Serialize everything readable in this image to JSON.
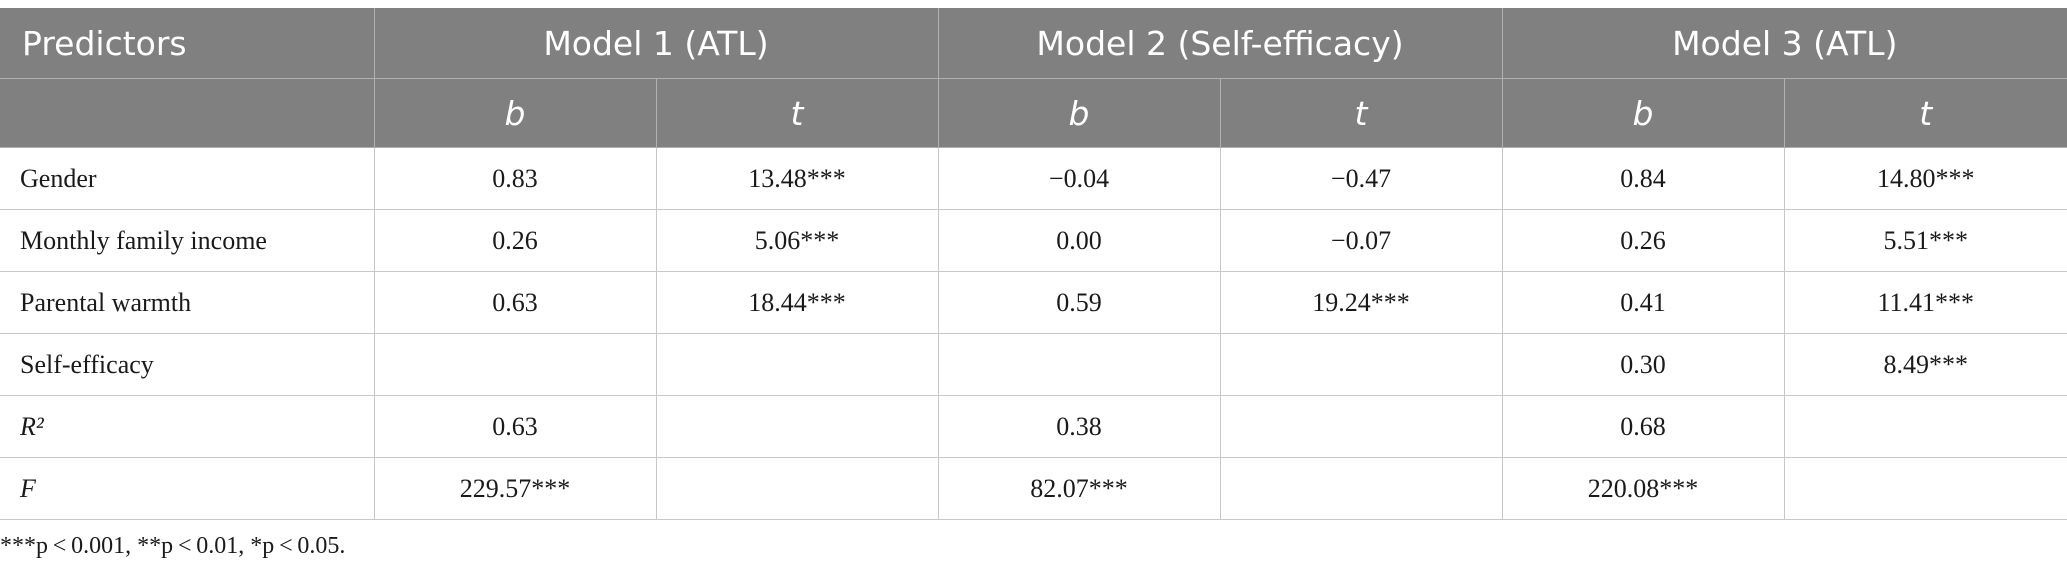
{
  "header": {
    "predictors": "Predictors",
    "models": [
      "Model 1 (ATL)",
      "Model 2 (Self-efficacy)",
      "Model 3 (ATL)"
    ],
    "sub": [
      "b",
      "t",
      "b",
      "t",
      "b",
      "t"
    ]
  },
  "rows": [
    {
      "label": "Gender",
      "label_italic": false,
      "cells": [
        "0.83",
        "13.48***",
        "−0.04",
        "−0.47",
        "0.84",
        "14.80***"
      ]
    },
    {
      "label": "Monthly family income",
      "label_italic": false,
      "cells": [
        "0.26",
        "5.06***",
        "0.00",
        "−0.07",
        "0.26",
        "5.51***"
      ]
    },
    {
      "label": "Parental warmth",
      "label_italic": false,
      "cells": [
        "0.63",
        "18.44***",
        "0.59",
        "19.24***",
        "0.41",
        "11.41***"
      ]
    },
    {
      "label": "Self-efficacy",
      "label_italic": false,
      "cells": [
        "",
        "",
        "",
        "",
        "0.30",
        "8.49***"
      ]
    },
    {
      "label": "R²",
      "label_italic": true,
      "cells": [
        "0.63",
        "",
        "0.38",
        "",
        "0.68",
        ""
      ]
    },
    {
      "label": "F",
      "label_italic": true,
      "cells": [
        "229.57***",
        "",
        "82.07***",
        "",
        "220.08***",
        ""
      ]
    }
  ],
  "footnote": "***p < 0.001, **p < 0.01, *p < 0.05."
}
